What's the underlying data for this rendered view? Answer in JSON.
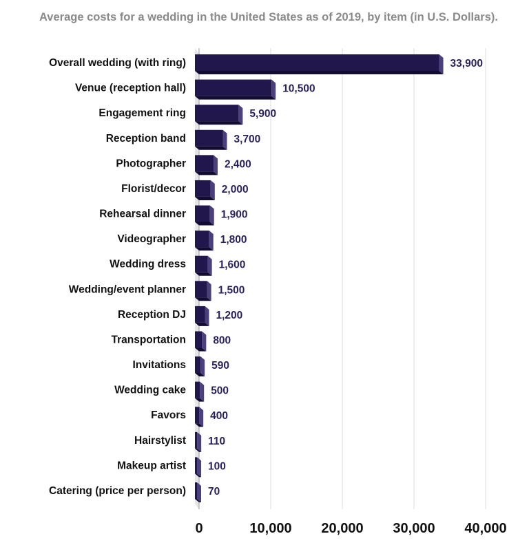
{
  "chart_data": {
    "type": "bar",
    "orientation": "horizontal",
    "title": "Average costs for a wedding in the United States as of 2019, by item (in U.S. Dollars).",
    "categories": [
      "Overall wedding (with ring)",
      "Venue (reception hall)",
      "Engagement ring",
      "Reception band",
      "Photographer",
      "Florist/decor",
      "Rehearsal dinner",
      "Videographer",
      "Wedding dress",
      "Wedding/event planner",
      "Reception DJ",
      "Transportation",
      "Invitations",
      "Wedding cake",
      "Favors",
      "Hairstylist",
      "Makeup artist",
      "Catering (price per person)"
    ],
    "values": [
      33900,
      10500,
      5900,
      3700,
      2400,
      2000,
      1900,
      1800,
      1600,
      1500,
      1200,
      800,
      590,
      500,
      400,
      110,
      100,
      70
    ],
    "value_labels": [
      "33,900",
      "10,500",
      "5,900",
      "3,700",
      "2,400",
      "2,000",
      "1,900",
      "1,800",
      "1,600",
      "1,500",
      "1,200",
      "800",
      "590",
      "500",
      "400",
      "110",
      "100",
      "70"
    ],
    "xlim": [
      0,
      40000
    ],
    "xticks": [
      0,
      10000,
      20000,
      30000,
      40000
    ],
    "xtick_labels": [
      "0",
      "10,000",
      "20,000",
      "30,000",
      "40,000"
    ],
    "grid": true,
    "style": "3d",
    "colors": {
      "bar_front": "#22174d",
      "bar_side": "#4b3f7c",
      "bar_bottom": "#120c30",
      "value_label": "#2a1f5c",
      "grid": "#dddddd"
    }
  }
}
